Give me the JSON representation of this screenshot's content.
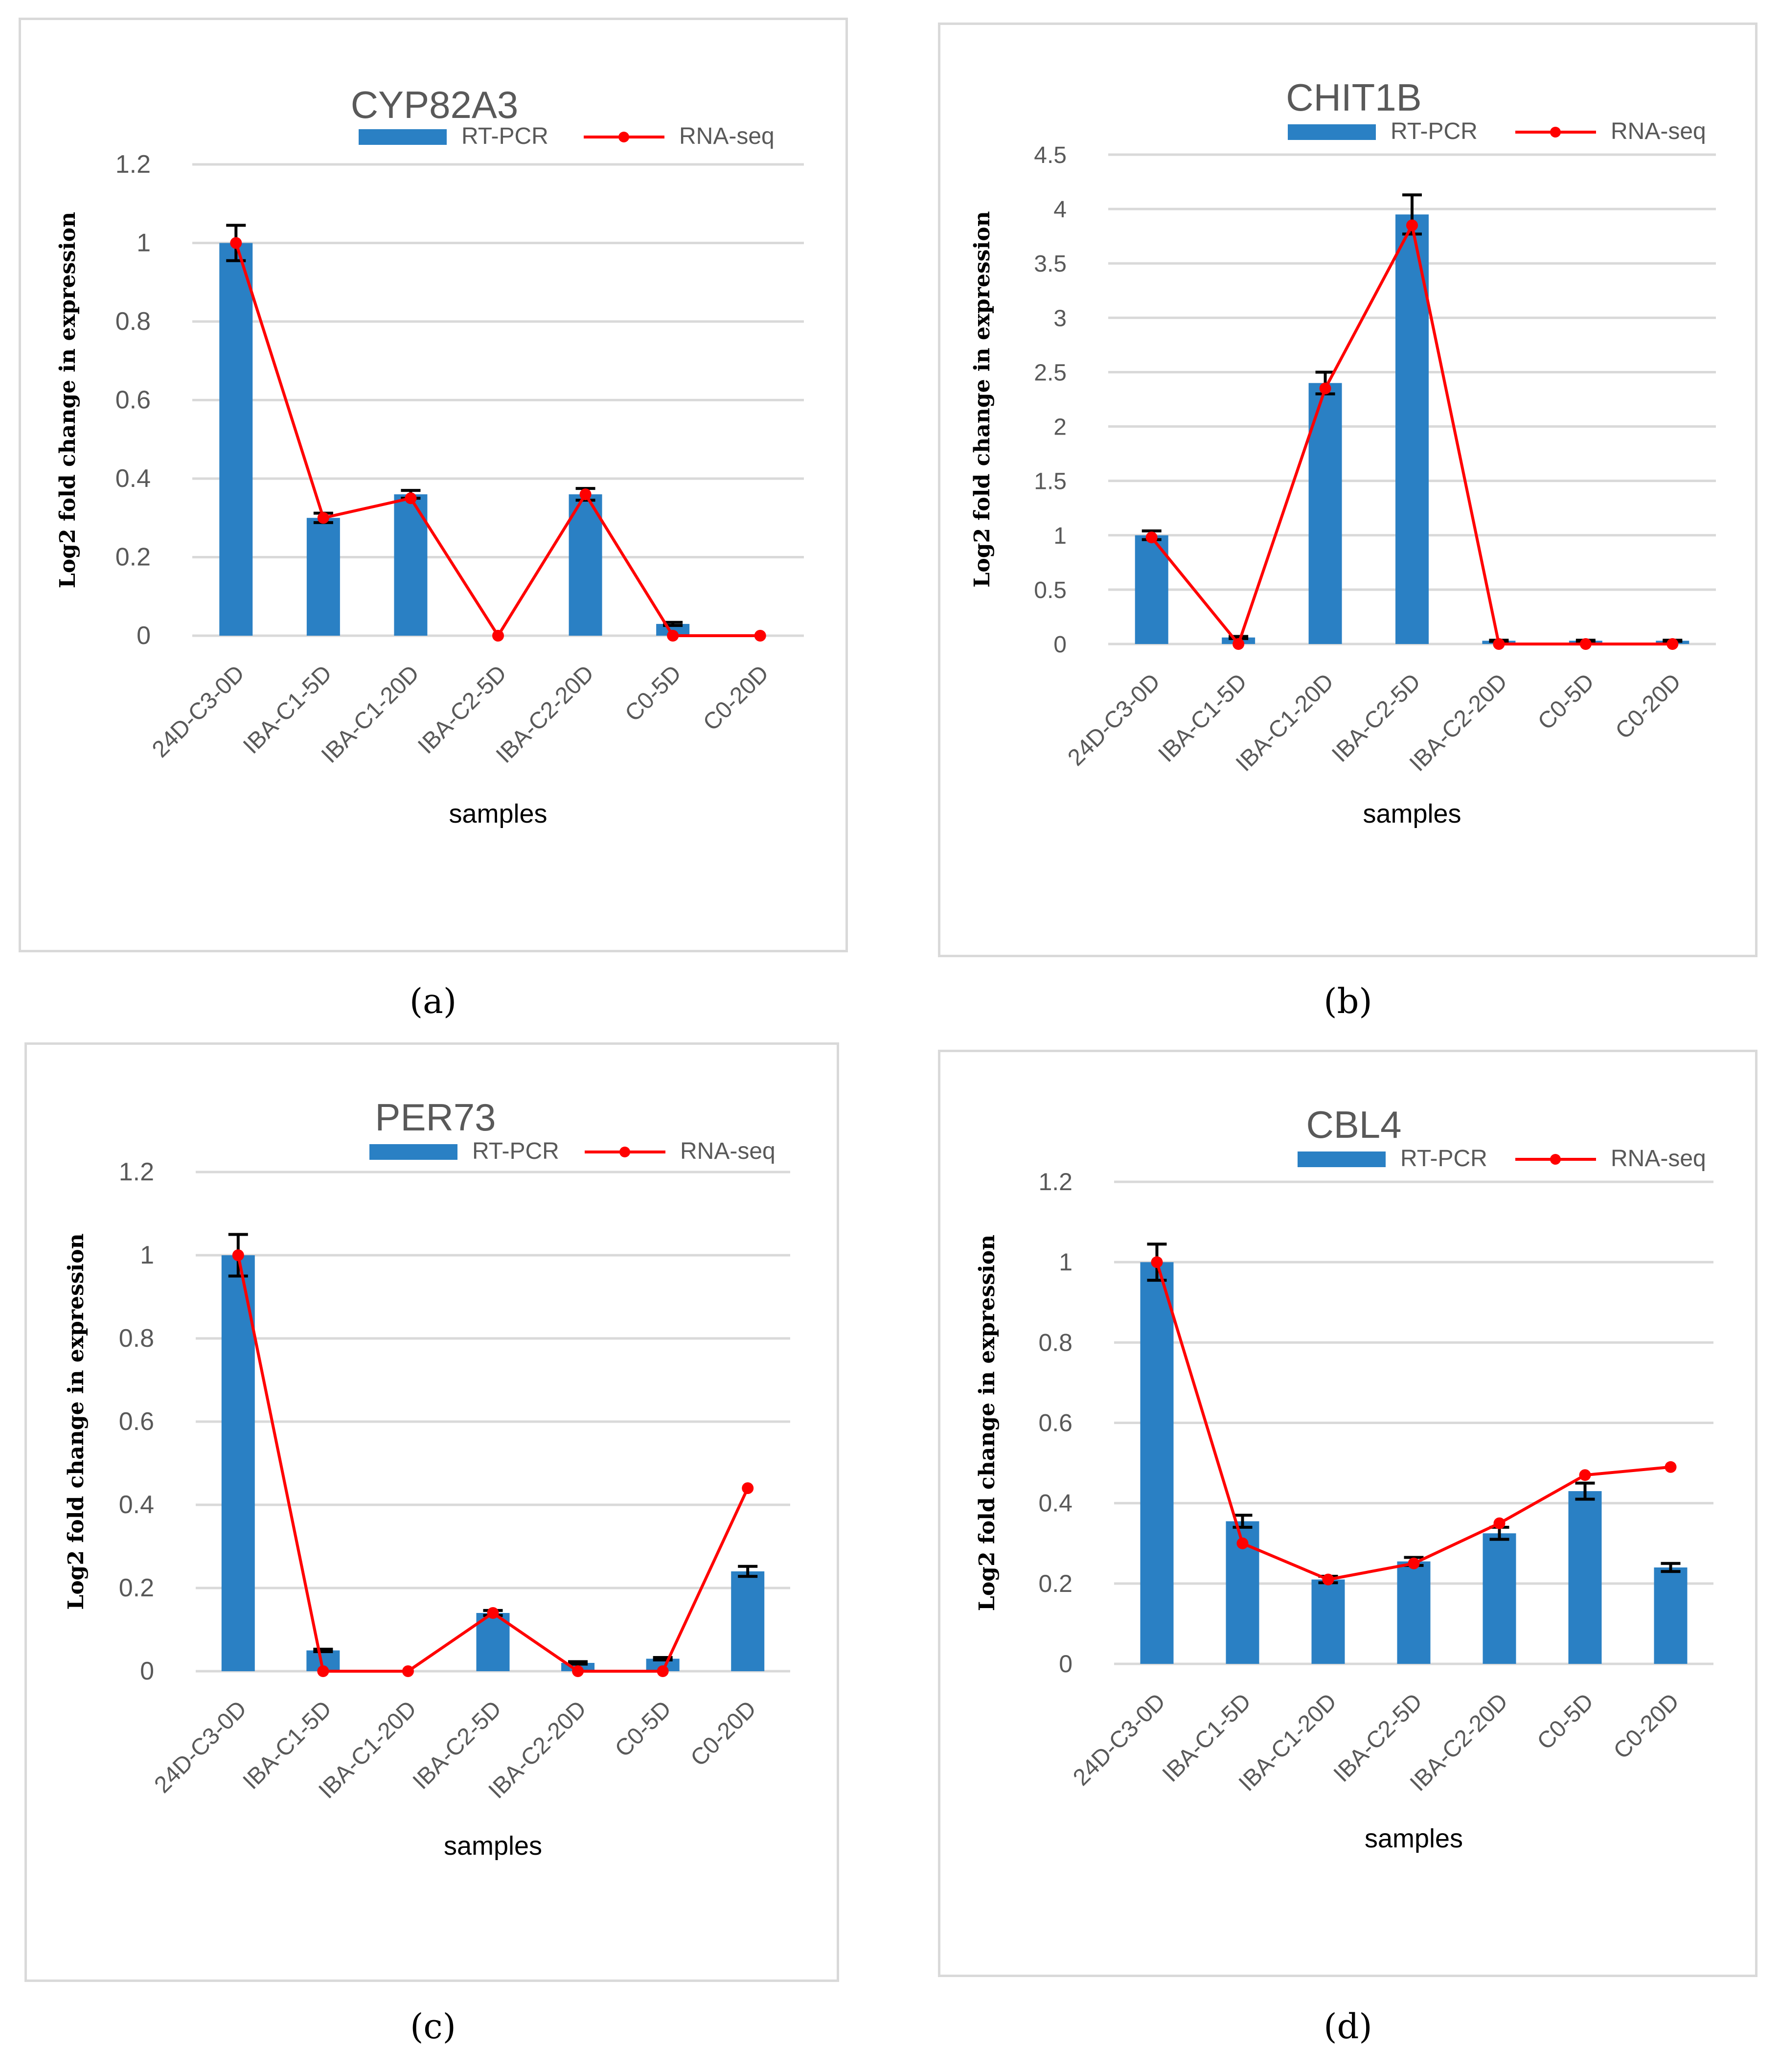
{
  "colors": {
    "bar": "#2a80c4",
    "line": "#ff0000",
    "grid": "#d9d9d9",
    "error": "#000000"
  },
  "chart_data": [
    {
      "panel": "a",
      "type": "bar",
      "title": "CYP82A3",
      "xlabel": "samples",
      "ylabel": "Log2 fold change in expression",
      "ylim": [
        0,
        1.2
      ],
      "yticks": [
        0,
        0.2,
        0.4,
        0.6,
        0.8,
        1,
        1.2
      ],
      "legend_position": "top",
      "categories": [
        "24D-C3-0D",
        "IBA-C1-5D",
        "IBA-C1-20D",
        "IBA-C2-5D",
        "IBA-C2-20D",
        "C0-5D",
        "C0-20D"
      ],
      "series": [
        {
          "name": "RT-PCR",
          "kind": "bar",
          "values": [
            1.0,
            0.3,
            0.36,
            0,
            0.36,
            0.03,
            0
          ],
          "errors": [
            0.045,
            0.012,
            0.01,
            0,
            0.015,
            0.004,
            0
          ]
        },
        {
          "name": "RNA-seq",
          "kind": "line",
          "values": [
            1.0,
            0.3,
            0.35,
            0,
            0.36,
            0,
            0
          ]
        }
      ]
    },
    {
      "panel": "b",
      "type": "bar",
      "title": "CHIT1B",
      "xlabel": "samples",
      "ylabel": "Log2 fold change in  expression",
      "ylim": [
        0,
        4.5
      ],
      "yticks": [
        0,
        0.5,
        1,
        1.5,
        2,
        2.5,
        3,
        3.5,
        4,
        4.5
      ],
      "legend_position": "top",
      "categories": [
        "24D-C3-0D",
        "IBA-C1-5D",
        "IBA-C1-20D",
        "IBA-C2-5D",
        "IBA-C2-20D",
        "C0-5D",
        "C0-20D"
      ],
      "series": [
        {
          "name": "RT-PCR",
          "kind": "bar",
          "values": [
            1.0,
            0.06,
            2.4,
            3.95,
            0.03,
            0.03,
            0.03
          ],
          "errors": [
            0.04,
            0.01,
            0.1,
            0.18,
            0.005,
            0.005,
            0.005
          ]
        },
        {
          "name": "RNA-seq",
          "kind": "line",
          "values": [
            0.98,
            0,
            2.35,
            3.85,
            0,
            0,
            0
          ]
        }
      ]
    },
    {
      "panel": "c",
      "type": "bar",
      "title": "PER73",
      "xlabel": "samples",
      "ylabel": "Log2 fold change in expression",
      "ylim": [
        0,
        1.2
      ],
      "yticks": [
        0,
        0.2,
        0.4,
        0.6,
        0.8,
        1,
        1.2
      ],
      "legend_position": "top",
      "categories": [
        "24D-C3-0D",
        "IBA-C1-5D",
        "IBA-C1-20D",
        "IBA-C2-5D",
        "IBA-C2-20D",
        "C0-5D",
        "C0-20D"
      ],
      "series": [
        {
          "name": "RT-PCR",
          "kind": "bar",
          "values": [
            1.0,
            0.05,
            0,
            0.14,
            0.02,
            0.03,
            0.24
          ],
          "errors": [
            0.05,
            0.003,
            0,
            0.006,
            0.003,
            0.003,
            0.012
          ]
        },
        {
          "name": "RNA-seq",
          "kind": "line",
          "values": [
            1.0,
            0,
            0,
            0.14,
            0,
            0,
            0.44
          ]
        }
      ]
    },
    {
      "panel": "d",
      "type": "bar",
      "title": "CBL4",
      "xlabel": "samples",
      "ylabel": "Log2 fold change in expression",
      "ylim": [
        0,
        1.2
      ],
      "yticks": [
        0,
        0.2,
        0.4,
        0.6,
        0.8,
        1,
        1.2
      ],
      "legend_position": "top",
      "categories": [
        "24D-C3-0D",
        "IBA-C1-5D",
        "IBA-C1-20D",
        "IBA-C2-5D",
        "IBA-C2-20D",
        "C0-5D",
        "C0-20D"
      ],
      "series": [
        {
          "name": "RT-PCR",
          "kind": "bar",
          "values": [
            1.0,
            0.355,
            0.21,
            0.255,
            0.325,
            0.43,
            0.24
          ],
          "errors": [
            0.045,
            0.015,
            0.008,
            0.01,
            0.015,
            0.02,
            0.01
          ]
        },
        {
          "name": "RNA-seq",
          "kind": "line",
          "values": [
            1.0,
            0.3,
            0.21,
            0.25,
            0.35,
            0.47,
            0.49
          ]
        }
      ]
    }
  ],
  "captions": [
    "(a)",
    "(b)",
    "(c)",
    "(d)"
  ]
}
